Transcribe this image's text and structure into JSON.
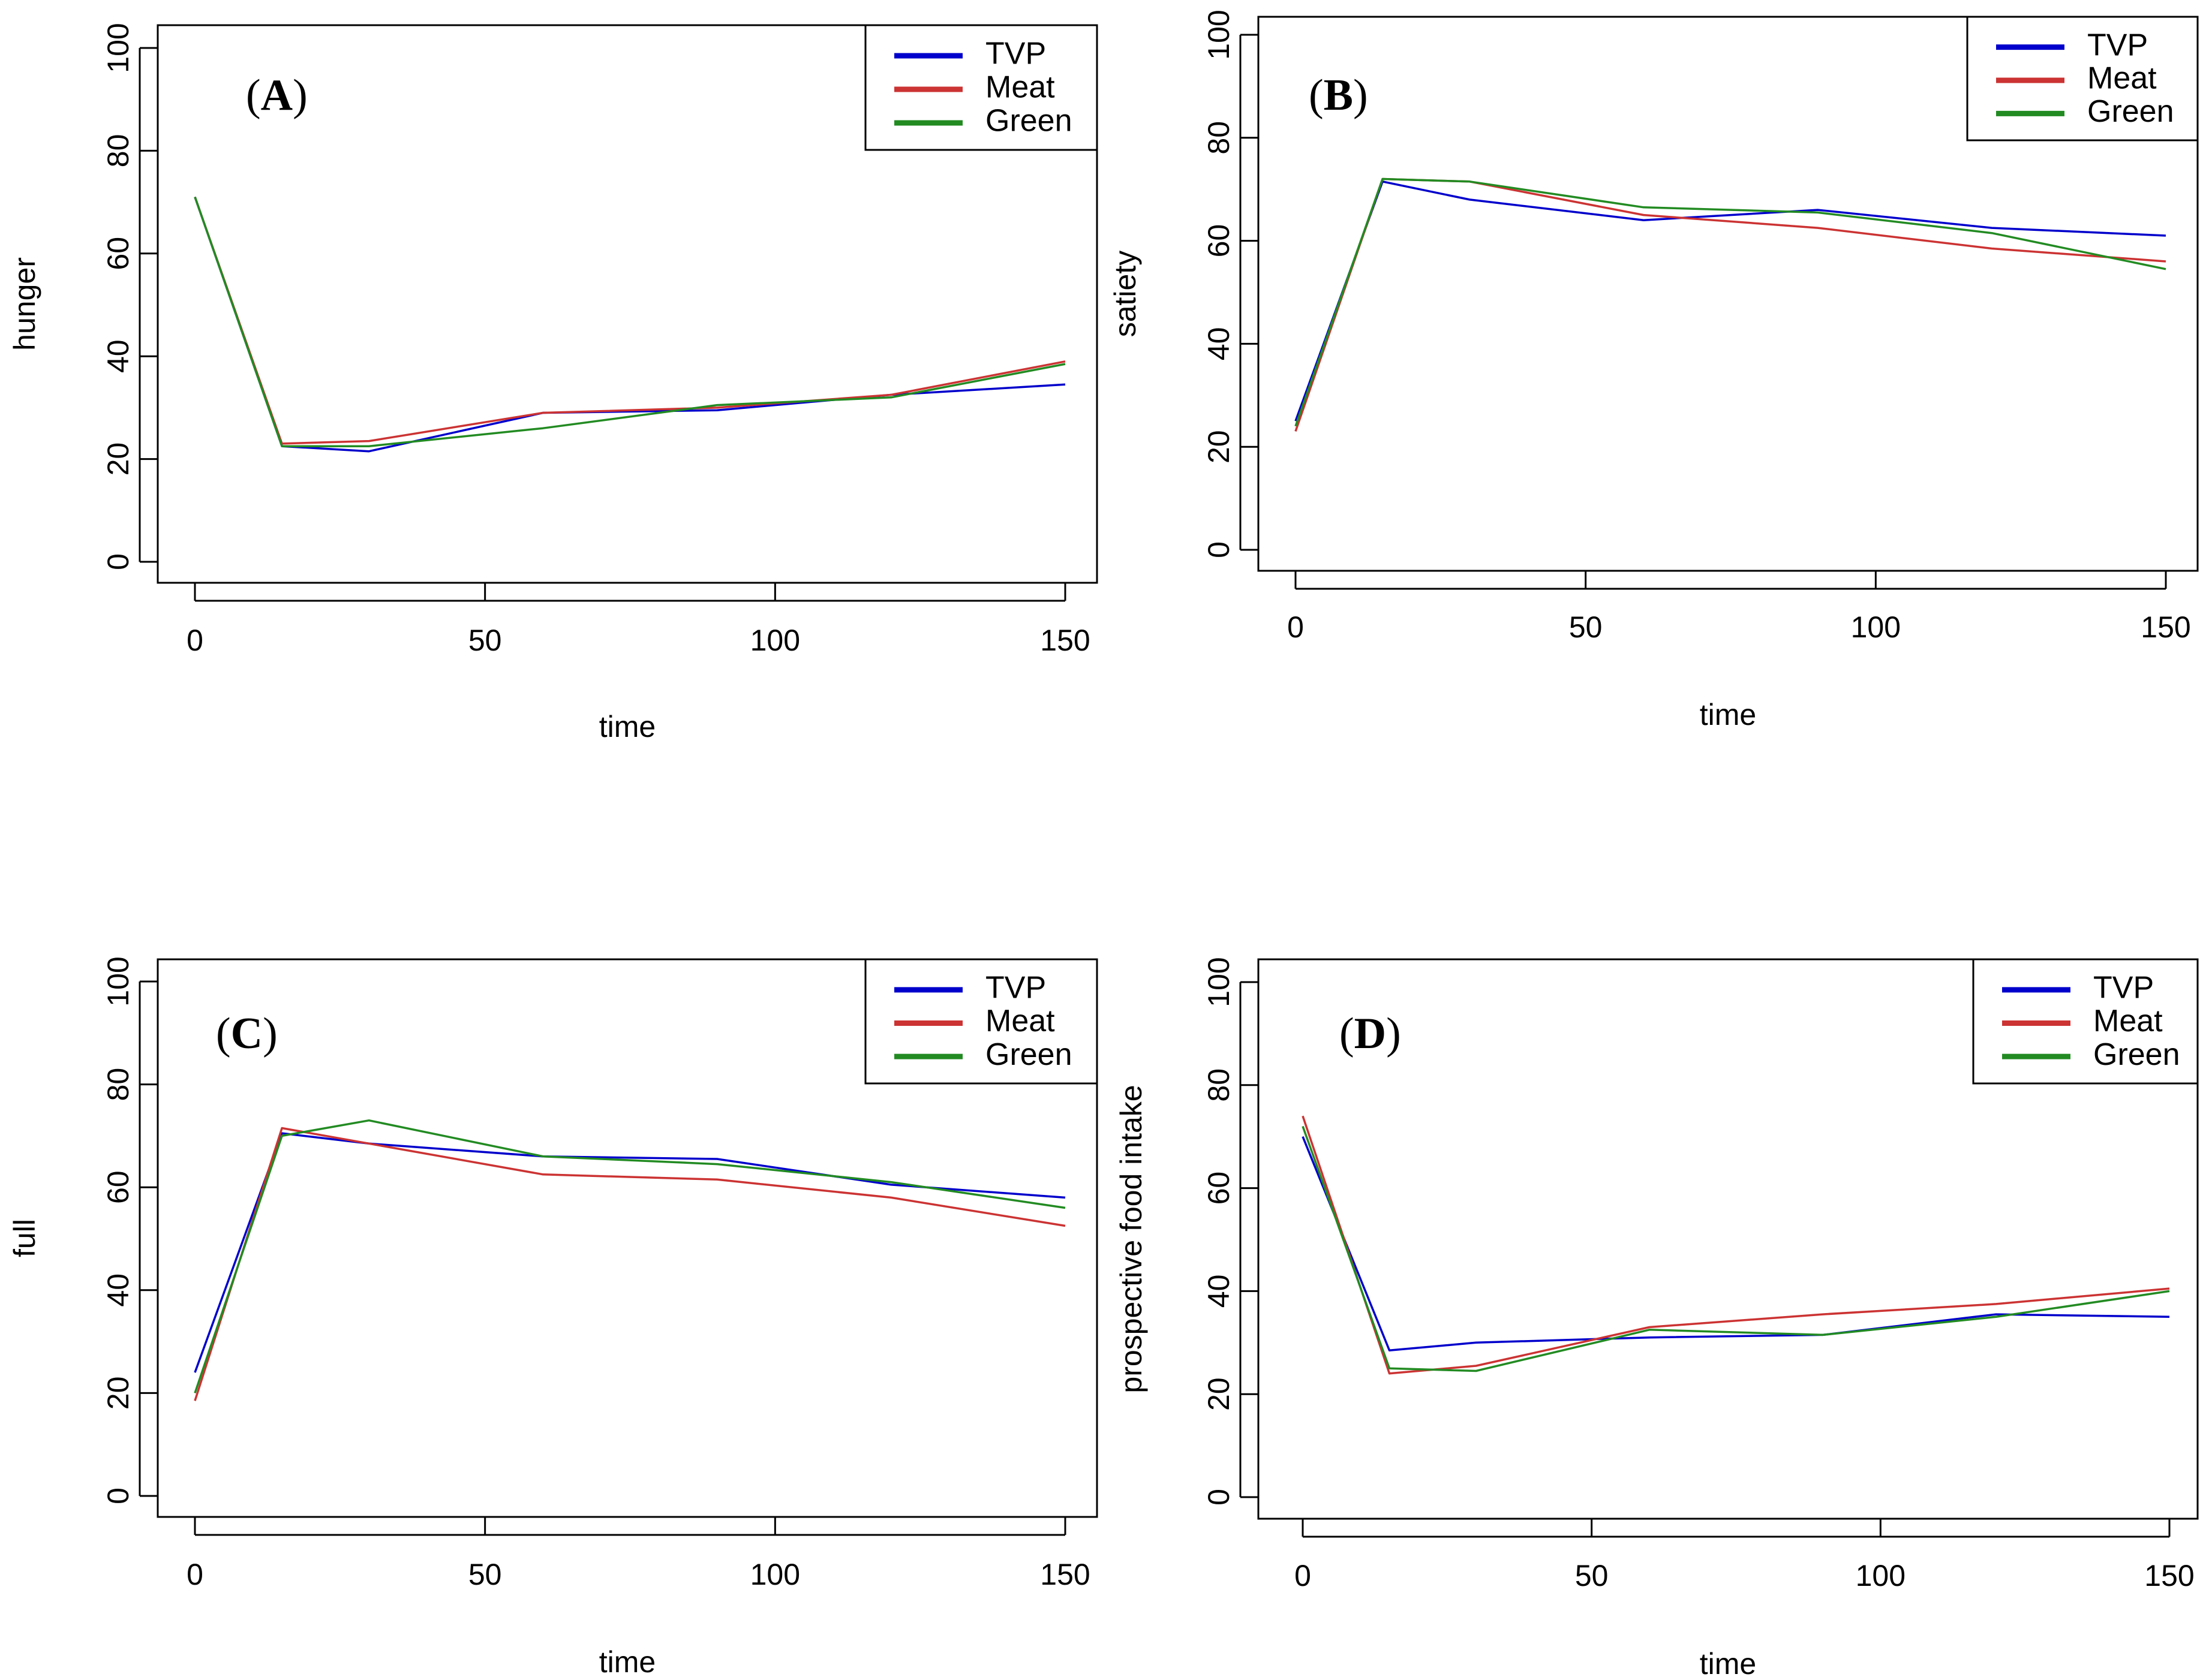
{
  "colors": {
    "TVP": "#0000cc",
    "Meat": "#cc3333",
    "Green": "#228b22"
  },
  "chart_data": [
    {
      "id": "A",
      "type": "line",
      "panel_label": "A",
      "xlabel": "time",
      "ylabel": "hunger",
      "xlim": [
        0,
        150
      ],
      "ylim": [
        0,
        100
      ],
      "xticks": [
        0,
        50,
        100,
        150
      ],
      "yticks": [
        0,
        20,
        40,
        60,
        80,
        100
      ],
      "legend": [
        "TVP",
        "Meat",
        "Green"
      ],
      "legend_position": "top-right",
      "series": [
        {
          "name": "TVP",
          "x": [
            0,
            15,
            30,
            60,
            90,
            120,
            150
          ],
          "y": [
            71,
            22.5,
            21.5,
            29,
            29.5,
            32.5,
            34.5
          ]
        },
        {
          "name": "Meat",
          "x": [
            0,
            15,
            30,
            60,
            90,
            120,
            150
          ],
          "y": [
            71,
            23,
            23.5,
            29,
            30,
            32.5,
            39
          ]
        },
        {
          "name": "Green",
          "x": [
            0,
            15,
            30,
            60,
            90,
            120,
            150
          ],
          "y": [
            71,
            22.5,
            22.5,
            26,
            30.5,
            32,
            38.5
          ]
        }
      ]
    },
    {
      "id": "B",
      "type": "line",
      "panel_label": "B",
      "xlabel": "time",
      "ylabel": "satiety",
      "xlim": [
        0,
        150
      ],
      "ylim": [
        0,
        100
      ],
      "xticks": [
        0,
        50,
        100,
        150
      ],
      "yticks": [
        0,
        20,
        40,
        60,
        80,
        100
      ],
      "legend": [
        "TVP",
        "Meat",
        "Green"
      ],
      "legend_position": "top-right",
      "series": [
        {
          "name": "TVP",
          "x": [
            0,
            15,
            30,
            60,
            90,
            120,
            150
          ],
          "y": [
            25,
            71.5,
            68,
            64,
            66,
            62.5,
            61
          ]
        },
        {
          "name": "Meat",
          "x": [
            0,
            15,
            30,
            60,
            90,
            120,
            150
          ],
          "y": [
            23,
            72,
            71.5,
            65,
            62.5,
            58.5,
            56
          ]
        },
        {
          "name": "Green",
          "x": [
            0,
            15,
            30,
            60,
            90,
            120,
            150
          ],
          "y": [
            24,
            72,
            71.5,
            66.5,
            65.5,
            61.5,
            54.5
          ]
        }
      ]
    },
    {
      "id": "C",
      "type": "line",
      "panel_label": "C",
      "xlabel": "time",
      "ylabel": "full",
      "xlim": [
        0,
        150
      ],
      "ylim": [
        0,
        100
      ],
      "xticks": [
        0,
        50,
        100,
        150
      ],
      "yticks": [
        0,
        20,
        40,
        60,
        80,
        100
      ],
      "legend": [
        "TVP",
        "Meat",
        "Green"
      ],
      "legend_position": "top-right",
      "series": [
        {
          "name": "TVP",
          "x": [
            0,
            15,
            30,
            60,
            90,
            120,
            150
          ],
          "y": [
            24,
            70.5,
            68.5,
            66,
            65.5,
            60.5,
            58
          ]
        },
        {
          "name": "Meat",
          "x": [
            0,
            15,
            30,
            60,
            90,
            120,
            150
          ],
          "y": [
            18.5,
            71.5,
            68.5,
            62.5,
            61.5,
            58,
            52.5
          ]
        },
        {
          "name": "Green",
          "x": [
            0,
            15,
            30,
            60,
            90,
            120,
            150
          ],
          "y": [
            20,
            70,
            73,
            66,
            64.5,
            61,
            56
          ]
        }
      ]
    },
    {
      "id": "D",
      "type": "line",
      "panel_label": "D",
      "xlabel": "time",
      "ylabel": "prospective food intake",
      "xlim": [
        0,
        150
      ],
      "ylim": [
        0,
        100
      ],
      "xticks": [
        0,
        50,
        100,
        150
      ],
      "yticks": [
        0,
        20,
        40,
        60,
        80,
        100
      ],
      "legend": [
        "TVP",
        "Meat",
        "Green"
      ],
      "legend_position": "top-right",
      "series": [
        {
          "name": "TVP",
          "x": [
            0,
            15,
            30,
            60,
            90,
            120,
            150
          ],
          "y": [
            70,
            28.5,
            30,
            31,
            31.5,
            35.5,
            35
          ]
        },
        {
          "name": "Meat",
          "x": [
            0,
            15,
            30,
            60,
            90,
            120,
            150
          ],
          "y": [
            74,
            24,
            25.5,
            33,
            35.5,
            37.5,
            40.5
          ]
        },
        {
          "name": "Green",
          "x": [
            0,
            15,
            30,
            60,
            90,
            120,
            150
          ],
          "y": [
            72,
            25,
            24.5,
            32.5,
            31.5,
            35,
            40
          ]
        }
      ]
    }
  ]
}
